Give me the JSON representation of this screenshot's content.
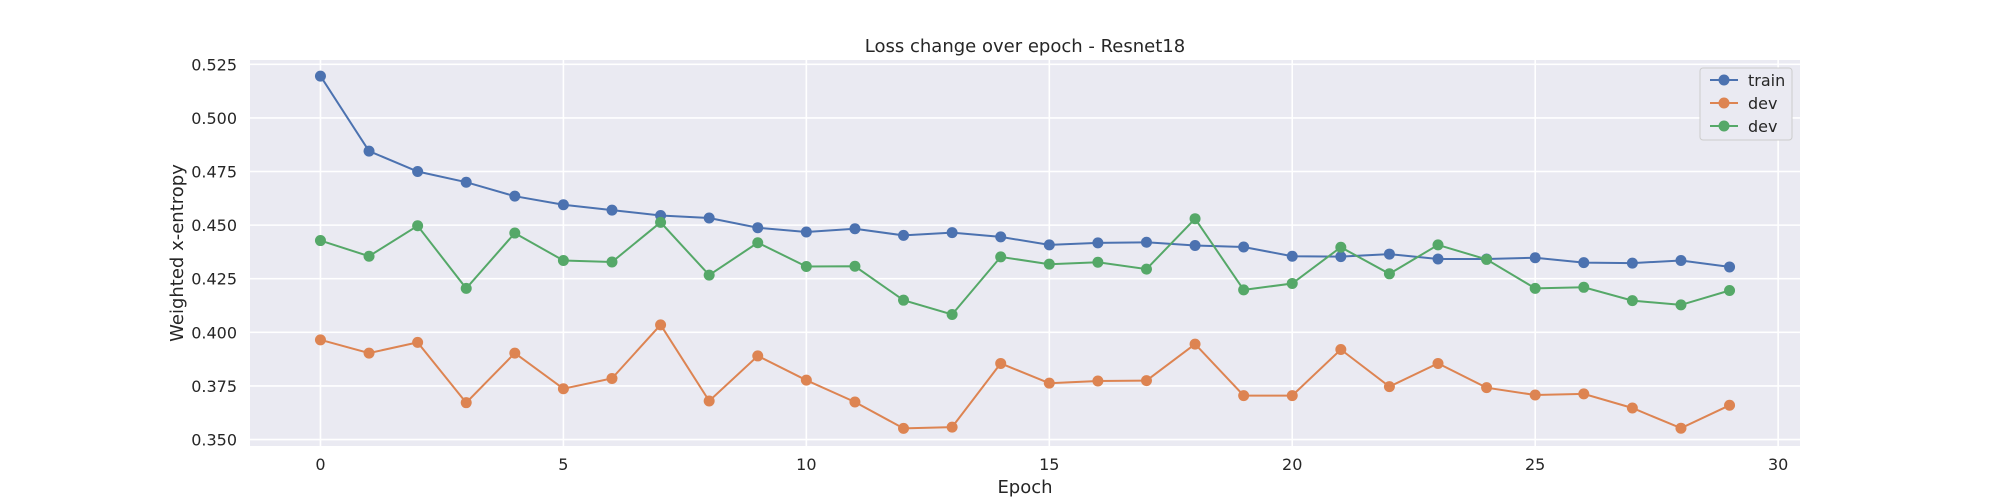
{
  "chart_data": {
    "type": "line",
    "title": "Loss change over epoch - Resnet18",
    "xlabel": "Epoch",
    "ylabel": "Weighted x-entropy",
    "xlim": [
      -1.45,
      30.45
    ],
    "ylim": [
      0.347,
      0.527
    ],
    "xticks": [
      0,
      5,
      10,
      15,
      20,
      25,
      30
    ],
    "yticks": [
      0.35,
      0.375,
      0.4,
      0.425,
      0.45,
      0.475,
      0.5,
      0.525
    ],
    "ytick_labels": [
      "0.350",
      "0.375",
      "0.400",
      "0.425",
      "0.450",
      "0.475",
      "0.500",
      "0.525"
    ],
    "grid": true,
    "legend_position": "upper right",
    "x": [
      0,
      1,
      2,
      3,
      4,
      5,
      6,
      7,
      8,
      9,
      10,
      11,
      12,
      13,
      14,
      15,
      16,
      17,
      18,
      19,
      20,
      21,
      22,
      23,
      24,
      25,
      26,
      27,
      28,
      29
    ],
    "series": [
      {
        "name": "train",
        "color": "#4c72b0",
        "values": [
          0.5195,
          0.4845,
          0.475,
          0.47,
          0.4635,
          0.4595,
          0.457,
          0.4545,
          0.4533,
          0.4488,
          0.4468,
          0.4483,
          0.4452,
          0.4465,
          0.4445,
          0.4408,
          0.4417,
          0.442,
          0.4405,
          0.4398,
          0.4355,
          0.4353,
          0.4365,
          0.4342,
          0.4342,
          0.4348,
          0.4325,
          0.4323,
          0.4335,
          0.4305
        ]
      },
      {
        "name": "dev",
        "color": "#dd8452",
        "values": [
          0.3965,
          0.3903,
          0.3953,
          0.3672,
          0.3903,
          0.3737,
          0.3785,
          0.4035,
          0.368,
          0.389,
          0.3777,
          0.3675,
          0.3552,
          0.3558,
          0.3855,
          0.3763,
          0.3773,
          0.3775,
          0.3945,
          0.3705,
          0.3705,
          0.392,
          0.3747,
          0.3855,
          0.3742,
          0.3708,
          0.3713,
          0.3647,
          0.3553,
          0.366
        ]
      },
      {
        "name": "dev",
        "color": "#55a868",
        "values": [
          0.4428,
          0.4355,
          0.4497,
          0.4205,
          0.4463,
          0.4335,
          0.4328,
          0.4513,
          0.4267,
          0.4418,
          0.4307,
          0.4308,
          0.415,
          0.4083,
          0.4352,
          0.4318,
          0.4327,
          0.4295,
          0.453,
          0.4198,
          0.4228,
          0.4397,
          0.4273,
          0.4408,
          0.434,
          0.4205,
          0.421,
          0.4148,
          0.4128,
          0.4195
        ]
      }
    ]
  }
}
